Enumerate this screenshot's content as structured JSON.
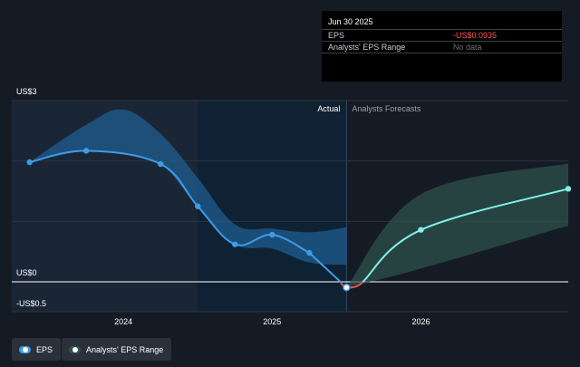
{
  "chart_data": {
    "type": "line",
    "title": "",
    "xlabel": "",
    "ylabel": "",
    "y_tick_labels": {
      "top": "US$3",
      "zero": "US$0",
      "bottom": "-US$0.5"
    },
    "x_tick_labels": [
      "2024",
      "2025",
      "2026"
    ],
    "x_ticks": [
      2024.0,
      2025.0,
      2026.0
    ],
    "xlim": [
      2023.25,
      2026.99
    ],
    "ylim": [
      -0.5,
      3.0
    ],
    "actual_label": "Actual",
    "forecast_label": "Analysts Forecasts",
    "actual_end": 2025.5,
    "past_range_start": 2024.5,
    "series": [
      {
        "name": "EPS",
        "color": "#3d9be9",
        "x": [
          2023.37,
          2023.75,
          2024.25,
          2024.5,
          2024.75,
          2025.0,
          2025.25,
          2025.5
        ],
        "y": [
          1.98,
          2.17,
          1.95,
          1.25,
          0.62,
          0.78,
          0.48,
          -0.0935
        ]
      },
      {
        "name": "EPS",
        "color": "#7ff0e8",
        "x": [
          2025.5,
          2026.0,
          2026.99
        ],
        "y": [
          -0.0935,
          0.86,
          1.54
        ]
      }
    ],
    "range_series": [
      {
        "name": "Analysts' EPS Range",
        "color": "#1f5d8f",
        "x": [
          2023.37,
          2023.75,
          2024.0,
          2024.25,
          2024.5,
          2024.75,
          2025.0,
          2025.25,
          2025.5
        ],
        "low": [
          1.98,
          2.17,
          2.11,
          1.95,
          1.25,
          0.62,
          0.55,
          0.32,
          0.28
        ],
        "high": [
          1.98,
          2.6,
          2.85,
          2.45,
          1.72,
          0.95,
          0.88,
          0.82,
          0.9
        ]
      },
      {
        "name": "Analysts' EPS Range",
        "color": "#2e5450",
        "x": [
          2025.5,
          2026.0,
          2026.99
        ],
        "low": [
          -0.0935,
          0.22,
          0.93
        ],
        "high": [
          -0.0935,
          1.45,
          1.96
        ]
      }
    ],
    "highlight_point": {
      "x": 2025.5,
      "y": -0.0935
    },
    "legend_placement": "bottom-left",
    "grid": true
  },
  "tooltip": {
    "date": "Jun 30 2025",
    "rows": [
      {
        "label": "EPS",
        "value": "-US$0.0935",
        "color": "#ff5a5a"
      },
      {
        "label": "Analysts' EPS Range",
        "value": "No data",
        "color": "#6b7078"
      }
    ]
  },
  "legend": {
    "items": [
      {
        "label": "EPS",
        "color": "#3d9be9"
      },
      {
        "label": "Analysts' EPS Range",
        "color": "#2e5450"
      }
    ]
  },
  "colors": {
    "background": "#151b24",
    "actual_region": "#1a2636",
    "past_band": "#0f2234",
    "grid": "#2c3440",
    "zero_line": "#ffffff",
    "text": "#c8ccd2",
    "negative": "#e05555"
  }
}
